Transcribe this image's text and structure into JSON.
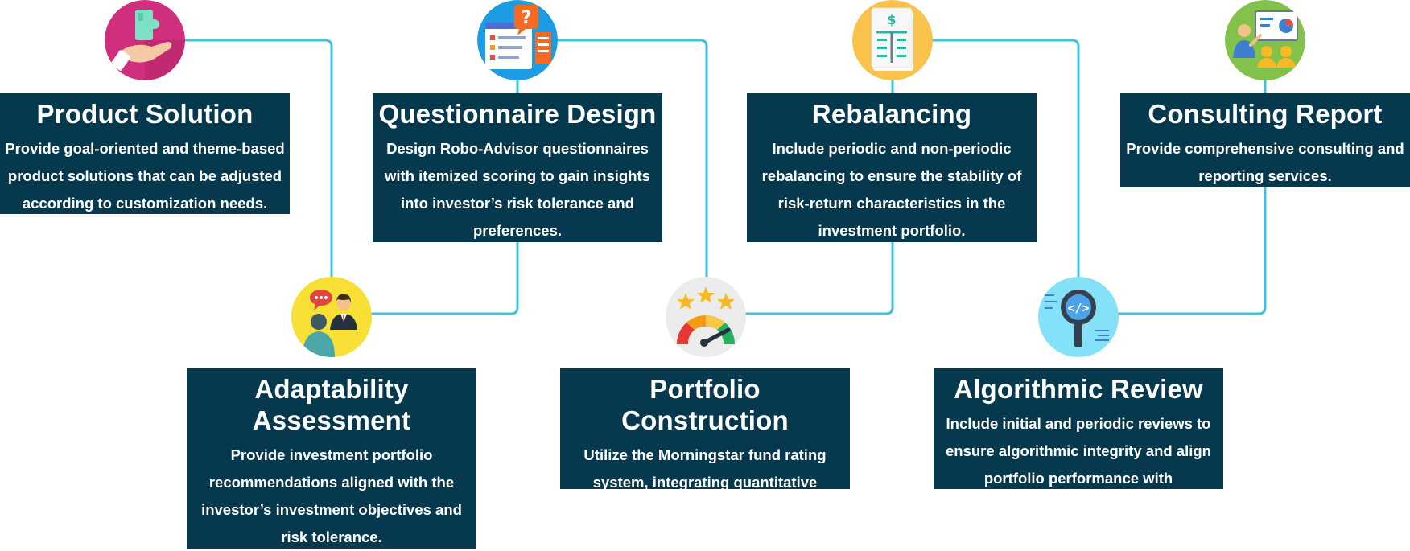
{
  "steps": [
    {
      "title": "Product Solution",
      "description": "Provide goal-oriented and theme-based product solutions that can be adjusted according to customization needs.",
      "icon": "puzzle-hand-icon",
      "icon_bg": "#cf2f7d"
    },
    {
      "title": "Adaptability Assessment",
      "description": "Provide investment portfolio recommendations aligned with the investor’s investment objectives and risk tolerance.",
      "icon": "consultation-people-icon",
      "icon_bg": "#f8df36"
    },
    {
      "title": "Questionnaire Design",
      "description": "Design Robo-Advisor questionnaires with itemized scoring to gain insights into investor’s risk tolerance and preferences.",
      "icon": "questionnaire-icon",
      "icon_bg": "#1d9ce6"
    },
    {
      "title": "Portfolio Construction",
      "description": "Utilize the Morningstar fund rating system, integrating quantitative analysis and qualitative research by analysts.",
      "icon": "rating-gauge-icon",
      "icon_bg": "#ececec"
    },
    {
      "title": "Rebalancing",
      "description": "Include periodic and non-periodic rebalancing to ensure the stability of risk-return characteristics in the investment portfolio.",
      "icon": "ledger-document-icon",
      "icon_bg": "#f8c24b"
    },
    {
      "title": "Algorithmic Review",
      "description": "Include initial and periodic reviews to ensure algorithmic integrity and align portfolio performance with expectations.",
      "icon": "code-magnifier-icon",
      "icon_bg": "#84e1f8"
    },
    {
      "title": "Consulting Report",
      "description": "Provide comprehensive consulting and reporting services.",
      "icon": "presentation-report-icon",
      "icon_bg": "#83c24a"
    }
  ],
  "colors": {
    "card_bg": "#06394d",
    "card_text": "#ffffff",
    "connector": "#3cc3de"
  }
}
